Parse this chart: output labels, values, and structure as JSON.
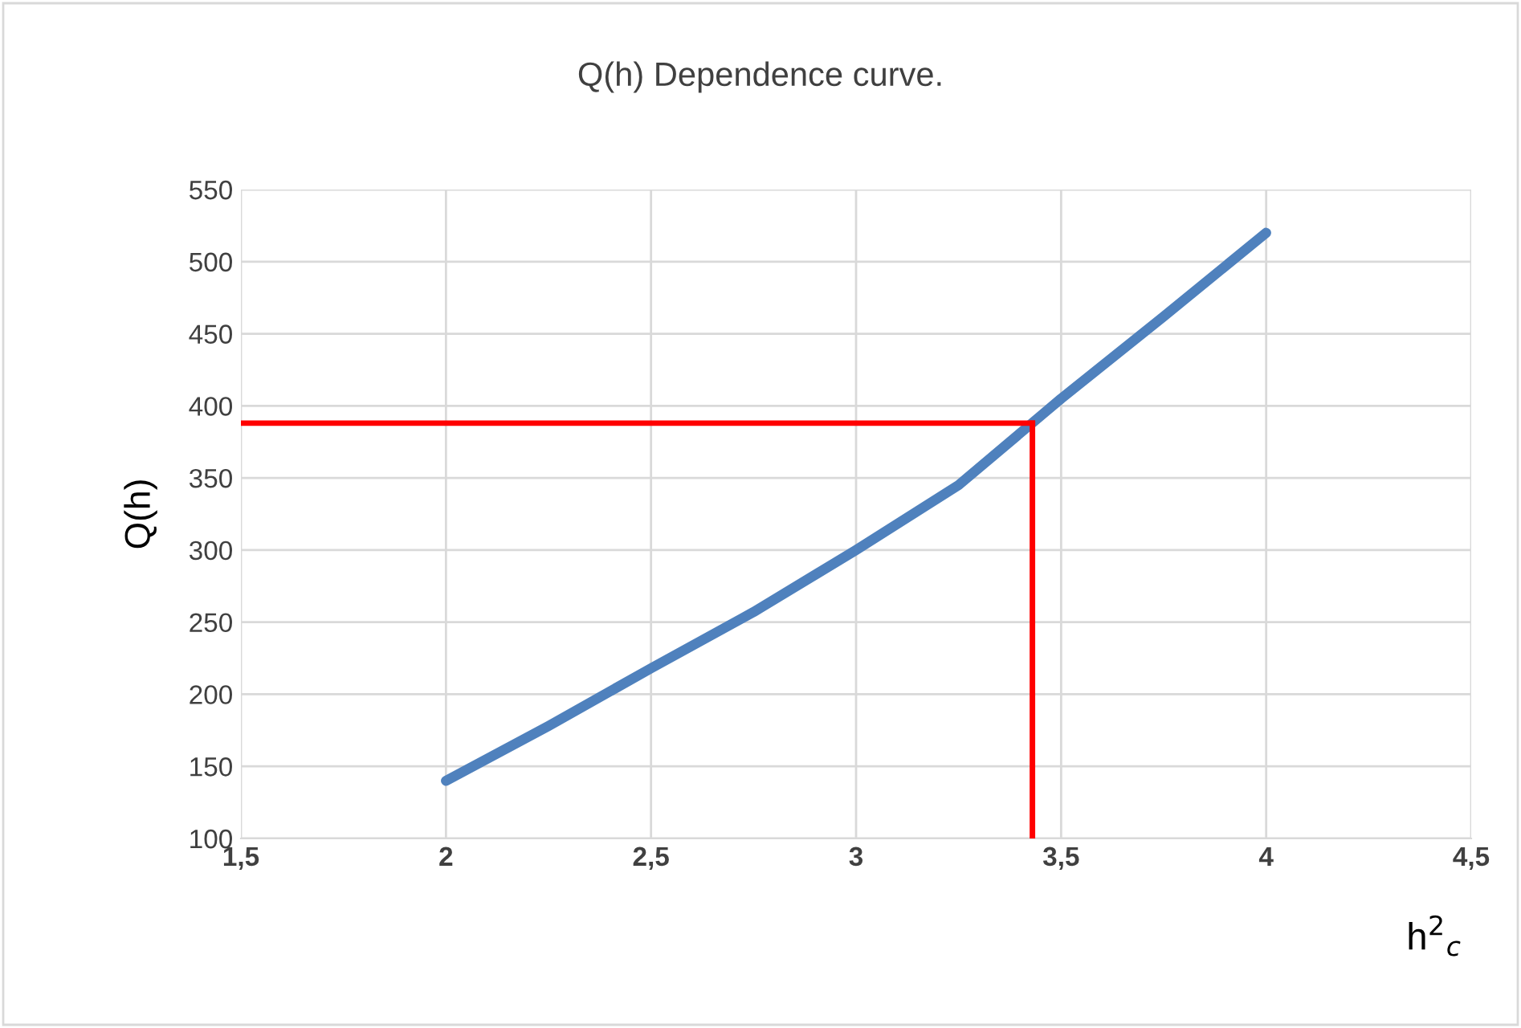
{
  "chart_data": {
    "type": "line",
    "title": "Q(h) Dependence curve.",
    "xlabel": "h$^{2}$$_{c}$",
    "ylabel": "Q(h)",
    "x": [
      2,
      2.25,
      2.5,
      2.75,
      3,
      3.25,
      3.5,
      3.75,
      4
    ],
    "series": [
      {
        "color": "#4f81bd",
        "values": [
          140,
          178,
          218,
          257,
          300,
          345,
          405,
          462,
          520
        ]
      }
    ],
    "xlim": [
      1.5,
      4.5
    ],
    "xticks": [
      {
        "value": 1.5,
        "label": "1,5"
      },
      2,
      {
        "value": 2.5,
        "label": "2,5"
      },
      3,
      {
        "value": 3.5,
        "label": "3,5"
      },
      4,
      {
        "value": 4.5,
        "label": "4,5"
      }
    ],
    "ylim": [
      100,
      550
    ],
    "yticks": [
      100,
      150,
      200,
      250,
      300,
      350,
      400,
      450,
      500,
      550
    ],
    "ref_lines": [
      {
        "axis": "x",
        "value": 3.43,
        "color": "#ff0000"
      },
      {
        "axis": "y",
        "value": 388,
        "color": "#ff0000"
      }
    ],
    "grid": true,
    "legend": false,
    "marker": "none",
    "line_style": "solid"
  }
}
